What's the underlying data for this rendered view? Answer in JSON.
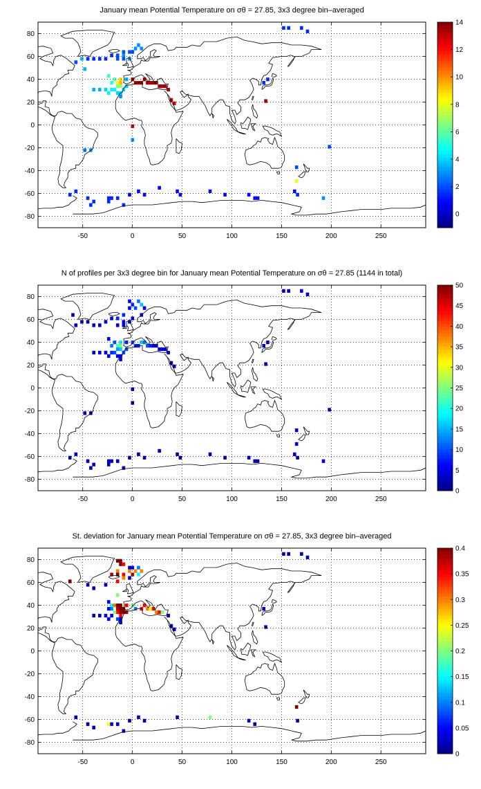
{
  "chart_data": [
    {
      "type": "heatmap",
      "title": "January mean Potential Temperature on σθ = 27.85, 3x3 degree bin–averaged",
      "x_ticks": [
        -50,
        0,
        50,
        100,
        150,
        200,
        250
      ],
      "y_ticks": [
        80,
        60,
        40,
        20,
        0,
        -20,
        -40,
        -60,
        -80
      ],
      "xlim": [
        -95,
        295
      ],
      "ylim": [
        -90,
        90
      ],
      "grid": true,
      "colorbar": {
        "range": [
          -1,
          14
        ],
        "ticks": [
          0,
          2,
          4,
          6,
          8,
          10,
          12,
          14
        ]
      },
      "cells": [
        [
          152,
          85,
          1.5
        ],
        [
          157,
          85,
          1.5
        ],
        [
          170,
          85,
          1.5
        ],
        [
          176,
          82,
          1.5
        ],
        [
          6,
          70,
          3
        ],
        [
          9,
          67,
          3
        ],
        [
          3,
          67,
          3
        ],
        [
          -3,
          64,
          2
        ],
        [
          -9,
          64,
          2
        ],
        [
          0,
          64,
          2
        ],
        [
          -15,
          61,
          2
        ],
        [
          -21,
          61,
          1.5
        ],
        [
          -9,
          61,
          3
        ],
        [
          -3,
          58,
          3
        ],
        [
          -27,
          58,
          1.5
        ],
        [
          -33,
          58,
          1.5
        ],
        [
          -51,
          58,
          3.5
        ],
        [
          -57,
          55,
          2
        ],
        [
          -45,
          58,
          1.5
        ],
        [
          -39,
          58,
          1.5
        ],
        [
          -15,
          58,
          2
        ],
        [
          -9,
          58,
          2
        ],
        [
          -48,
          49,
          3.5
        ],
        [
          -24,
          43,
          5.5
        ],
        [
          -18,
          40,
          6
        ],
        [
          -12,
          40,
          9
        ],
        [
          -12,
          37,
          9.5
        ],
        [
          -15,
          37,
          8
        ],
        [
          -21,
          37,
          5
        ],
        [
          -6,
          40,
          3.5
        ],
        [
          -6,
          34,
          4
        ],
        [
          -12,
          34,
          7
        ],
        [
          -15,
          34,
          6.5
        ],
        [
          -9,
          31,
          4
        ],
        [
          -18,
          31,
          4.5
        ],
        [
          -21,
          31,
          4.5
        ],
        [
          -24,
          28,
          4.5
        ],
        [
          -15,
          28,
          4
        ],
        [
          -12,
          28,
          4
        ],
        [
          -33,
          31,
          3.5
        ],
        [
          -39,
          31,
          3.5
        ],
        [
          -27,
          31,
          4
        ],
        [
          -12,
          25,
          3
        ],
        [
          0,
          40,
          13.5
        ],
        [
          3,
          37,
          13.5
        ],
        [
          6,
          37,
          13.5
        ],
        [
          9,
          37,
          13.5
        ],
        [
          12,
          40,
          13.5
        ],
        [
          15,
          37,
          13.5
        ],
        [
          18,
          37,
          13.5
        ],
        [
          21,
          37,
          13.5
        ],
        [
          24,
          37,
          13.5
        ],
        [
          27,
          34,
          13.5
        ],
        [
          30,
          34,
          13.5
        ],
        [
          33,
          34,
          13.5
        ],
        [
          36,
          31,
          13.5
        ],
        [
          39,
          22,
          13
        ],
        [
          42,
          19,
          13
        ],
        [
          132,
          37,
          1.5
        ],
        [
          136,
          40,
          1.5
        ],
        [
          134,
          21,
          13.5
        ],
        [
          0,
          -1,
          13
        ],
        [
          0,
          -13,
          3
        ],
        [
          -42,
          -22,
          3
        ],
        [
          -48,
          -22,
          2.5
        ],
        [
          198,
          -19,
          2
        ],
        [
          165,
          -37,
          2
        ],
        [
          165,
          -49,
          8
        ],
        [
          163,
          -58,
          1
        ],
        [
          166,
          -61,
          1.5
        ],
        [
          192,
          -64,
          3
        ],
        [
          -57,
          -58,
          1.5
        ],
        [
          -45,
          -64,
          1.5
        ],
        [
          -39,
          -67,
          1.5
        ],
        [
          -42,
          -70,
          1.5
        ],
        [
          -24,
          -64,
          1.5
        ],
        [
          -21,
          -64,
          1.5
        ],
        [
          -24,
          -67,
          1.5
        ],
        [
          -15,
          -64,
          1.5
        ],
        [
          -9,
          -70,
          1.5
        ],
        [
          -3,
          -61,
          1
        ],
        [
          6,
          -58,
          1
        ],
        [
          12,
          -61,
          1
        ],
        [
          27,
          -55,
          1
        ],
        [
          45,
          -58,
          1
        ],
        [
          48,
          -61,
          1
        ],
        [
          78,
          -58,
          1
        ],
        [
          93,
          -61,
          1
        ],
        [
          117,
          -61,
          1
        ],
        [
          123,
          -64,
          1
        ],
        [
          126,
          -64,
          1
        ],
        [
          -63,
          -61,
          1.5
        ]
      ]
    },
    {
      "type": "heatmap",
      "title": "N of profiles per 3x3 degree bin for January mean Potential Temperature on σθ = 27.85 (1144 in total)",
      "x_ticks": [
        -50,
        0,
        50,
        100,
        150,
        200,
        250
      ],
      "y_ticks": [
        80,
        60,
        40,
        20,
        0,
        -20,
        -40,
        -60,
        -80
      ],
      "xlim": [
        -95,
        295
      ],
      "ylim": [
        -90,
        90
      ],
      "grid": true,
      "colorbar": {
        "range": [
          0,
          50
        ],
        "ticks": [
          0,
          5,
          10,
          15,
          20,
          25,
          30,
          35,
          40,
          45,
          50
        ]
      },
      "cells": [
        [
          152,
          85,
          3
        ],
        [
          157,
          85,
          3
        ],
        [
          170,
          85,
          5
        ],
        [
          176,
          82,
          3
        ],
        [
          6,
          76,
          12
        ],
        [
          9,
          73,
          16
        ],
        [
          3,
          70,
          10
        ],
        [
          -3,
          70,
          6
        ],
        [
          -3,
          76,
          6
        ],
        [
          0,
          73,
          8
        ],
        [
          12,
          70,
          6
        ],
        [
          9,
          64,
          5
        ],
        [
          -9,
          64,
          8
        ],
        [
          0,
          61,
          5
        ],
        [
          -15,
          61,
          8
        ],
        [
          -21,
          61,
          6
        ],
        [
          -9,
          58,
          6
        ],
        [
          -3,
          58,
          5
        ],
        [
          -27,
          58,
          4
        ],
        [
          -33,
          55,
          3
        ],
        [
          -51,
          58,
          3
        ],
        [
          -57,
          55,
          3
        ],
        [
          -45,
          58,
          2
        ],
        [
          -39,
          55,
          3
        ],
        [
          -15,
          55,
          4
        ],
        [
          -9,
          55,
          4
        ],
        [
          -60,
          64,
          2
        ],
        [
          -24,
          43,
          6
        ],
        [
          -18,
          40,
          10
        ],
        [
          -12,
          40,
          18
        ],
        [
          -12,
          37,
          25
        ],
        [
          -15,
          37,
          22
        ],
        [
          -21,
          37,
          12
        ],
        [
          -6,
          40,
          8
        ],
        [
          -6,
          34,
          10
        ],
        [
          -12,
          34,
          16
        ],
        [
          -15,
          34,
          14
        ],
        [
          -9,
          31,
          10
        ],
        [
          -18,
          31,
          10
        ],
        [
          -21,
          31,
          8
        ],
        [
          -24,
          28,
          6
        ],
        [
          -15,
          28,
          6
        ],
        [
          -12,
          28,
          6
        ],
        [
          -33,
          31,
          4
        ],
        [
          -39,
          31,
          3
        ],
        [
          -27,
          31,
          5
        ],
        [
          -12,
          25,
          5
        ],
        [
          0,
          40,
          10
        ],
        [
          3,
          37,
          8
        ],
        [
          6,
          37,
          8
        ],
        [
          9,
          40,
          16
        ],
        [
          12,
          40,
          12
        ],
        [
          15,
          37,
          10
        ],
        [
          18,
          37,
          8
        ],
        [
          21,
          37,
          6
        ],
        [
          24,
          37,
          6
        ],
        [
          27,
          34,
          5
        ],
        [
          30,
          34,
          5
        ],
        [
          33,
          34,
          4
        ],
        [
          36,
          31,
          3
        ],
        [
          39,
          22,
          3
        ],
        [
          42,
          19,
          3
        ],
        [
          132,
          37,
          3
        ],
        [
          136,
          40,
          3
        ],
        [
          134,
          21,
          3
        ],
        [
          0,
          -1,
          2
        ],
        [
          0,
          -13,
          2
        ],
        [
          -42,
          -22,
          2
        ],
        [
          -48,
          -22,
          2
        ],
        [
          198,
          -19,
          3
        ],
        [
          165,
          -37,
          3
        ],
        [
          165,
          -49,
          3
        ],
        [
          163,
          -58,
          3
        ],
        [
          166,
          -61,
          3
        ],
        [
          192,
          -64,
          3
        ],
        [
          -57,
          -58,
          3
        ],
        [
          -45,
          -64,
          3
        ],
        [
          -39,
          -67,
          3
        ],
        [
          -42,
          -70,
          3
        ],
        [
          -24,
          -64,
          3
        ],
        [
          -21,
          -64,
          3
        ],
        [
          -24,
          -67,
          3
        ],
        [
          -15,
          -64,
          3
        ],
        [
          -9,
          -70,
          3
        ],
        [
          -3,
          -61,
          2
        ],
        [
          6,
          -58,
          2
        ],
        [
          12,
          -61,
          2
        ],
        [
          27,
          -55,
          2
        ],
        [
          45,
          -58,
          2
        ],
        [
          48,
          -61,
          2
        ],
        [
          78,
          -58,
          2
        ],
        [
          93,
          -61,
          2
        ],
        [
          117,
          -61,
          2
        ],
        [
          123,
          -64,
          2
        ],
        [
          126,
          -64,
          2
        ],
        [
          -63,
          -61,
          2
        ]
      ]
    },
    {
      "type": "heatmap",
      "title": "St. deviation for January mean Potential Temperature on σθ = 27.85, 3x3 degree bin–averaged",
      "x_ticks": [
        -50,
        0,
        50,
        100,
        150,
        200,
        250
      ],
      "y_ticks": [
        80,
        60,
        40,
        20,
        0,
        -20,
        -40,
        -60,
        -80
      ],
      "xlim": [
        -95,
        295
      ],
      "ylim": [
        -90,
        90
      ],
      "grid": true,
      "colorbar": {
        "range": [
          0,
          0.4
        ],
        "ticks": [
          0,
          0.05,
          0.1,
          0.15,
          0.2,
          0.25,
          0.3,
          0.35,
          0.4
        ]
      },
      "cells": [
        [
          152,
          85,
          0.02
        ],
        [
          157,
          85,
          0.02
        ],
        [
          170,
          85,
          0.02
        ],
        [
          176,
          82,
          0.02
        ],
        [
          -15,
          79,
          0.4
        ],
        [
          -12,
          79,
          0.4
        ],
        [
          -12,
          76,
          0.4
        ],
        [
          -9,
          76,
          0.35
        ],
        [
          -3,
          73,
          0.02
        ],
        [
          0,
          73,
          0.05
        ],
        [
          6,
          73,
          0.1
        ],
        [
          9,
          70,
          0.3
        ],
        [
          3,
          70,
          0.3
        ],
        [
          -3,
          70,
          0.3
        ],
        [
          0,
          67,
          0.38
        ],
        [
          -9,
          67,
          0.35
        ],
        [
          -15,
          70,
          0.3
        ],
        [
          -15,
          67,
          0.4
        ],
        [
          -21,
          67,
          0.38
        ],
        [
          -9,
          64,
          0.3
        ],
        [
          -15,
          61,
          0.35
        ],
        [
          -3,
          64,
          0.02
        ],
        [
          6,
          67,
          0.15
        ],
        [
          -63,
          61,
          0.4
        ],
        [
          -45,
          58,
          0.02
        ],
        [
          -39,
          55,
          0.02
        ],
        [
          -27,
          58,
          0.02
        ],
        [
          -24,
          43,
          0.05
        ],
        [
          -21,
          40,
          0.15
        ],
        [
          -18,
          40,
          0.3
        ],
        [
          -15,
          40,
          0.4
        ],
        [
          -12,
          40,
          0.4
        ],
        [
          -12,
          37,
          0.4
        ],
        [
          -15,
          37,
          0.38
        ],
        [
          -9,
          37,
          0.4
        ],
        [
          -6,
          40,
          0.35
        ],
        [
          -21,
          37,
          0.1
        ],
        [
          -24,
          37,
          0.05
        ],
        [
          -12,
          34,
          0.4
        ],
        [
          -15,
          34,
          0.35
        ],
        [
          -9,
          34,
          0.4
        ],
        [
          -6,
          34,
          0.38
        ],
        [
          -18,
          34,
          0.2
        ],
        [
          -21,
          31,
          0.05
        ],
        [
          -24,
          28,
          0.05
        ],
        [
          -12,
          31,
          0.35
        ],
        [
          -15,
          28,
          0.08
        ],
        [
          -12,
          28,
          0.05
        ],
        [
          -33,
          31,
          0.02
        ],
        [
          -39,
          31,
          0.02
        ],
        [
          -27,
          31,
          0.05
        ],
        [
          -12,
          25,
          0.02
        ],
        [
          -15,
          49,
          0.2
        ],
        [
          0,
          40,
          0.2
        ],
        [
          3,
          37,
          0.1
        ],
        [
          9,
          37,
          0.35
        ],
        [
          12,
          40,
          0.35
        ],
        [
          15,
          37,
          0.3
        ],
        [
          18,
          37,
          0.25
        ],
        [
          21,
          37,
          0.35
        ],
        [
          24,
          34,
          0.3
        ],
        [
          27,
          34,
          0.35
        ],
        [
          30,
          34,
          0.2
        ],
        [
          36,
          31,
          0.02
        ],
        [
          39,
          22,
          0.02
        ],
        [
          42,
          19,
          0.02
        ],
        [
          132,
          37,
          0.02
        ],
        [
          134,
          21,
          0.02
        ],
        [
          165,
          -49,
          0.4
        ],
        [
          166,
          -61,
          0.02
        ],
        [
          78,
          -58,
          0.2
        ],
        [
          -57,
          -58,
          0.02
        ],
        [
          -45,
          -64,
          0.02
        ],
        [
          -39,
          -67,
          0.02
        ],
        [
          -24,
          -64,
          0.25
        ],
        [
          -21,
          -64,
          0.05
        ],
        [
          -15,
          -64,
          0.02
        ],
        [
          -9,
          -70,
          0.02
        ],
        [
          -3,
          -61,
          0.02
        ],
        [
          6,
          -58,
          0.02
        ],
        [
          12,
          -61,
          0.02
        ],
        [
          45,
          -58,
          0.02
        ],
        [
          117,
          -61,
          0.02
        ],
        [
          123,
          -64,
          0.02
        ]
      ]
    }
  ]
}
